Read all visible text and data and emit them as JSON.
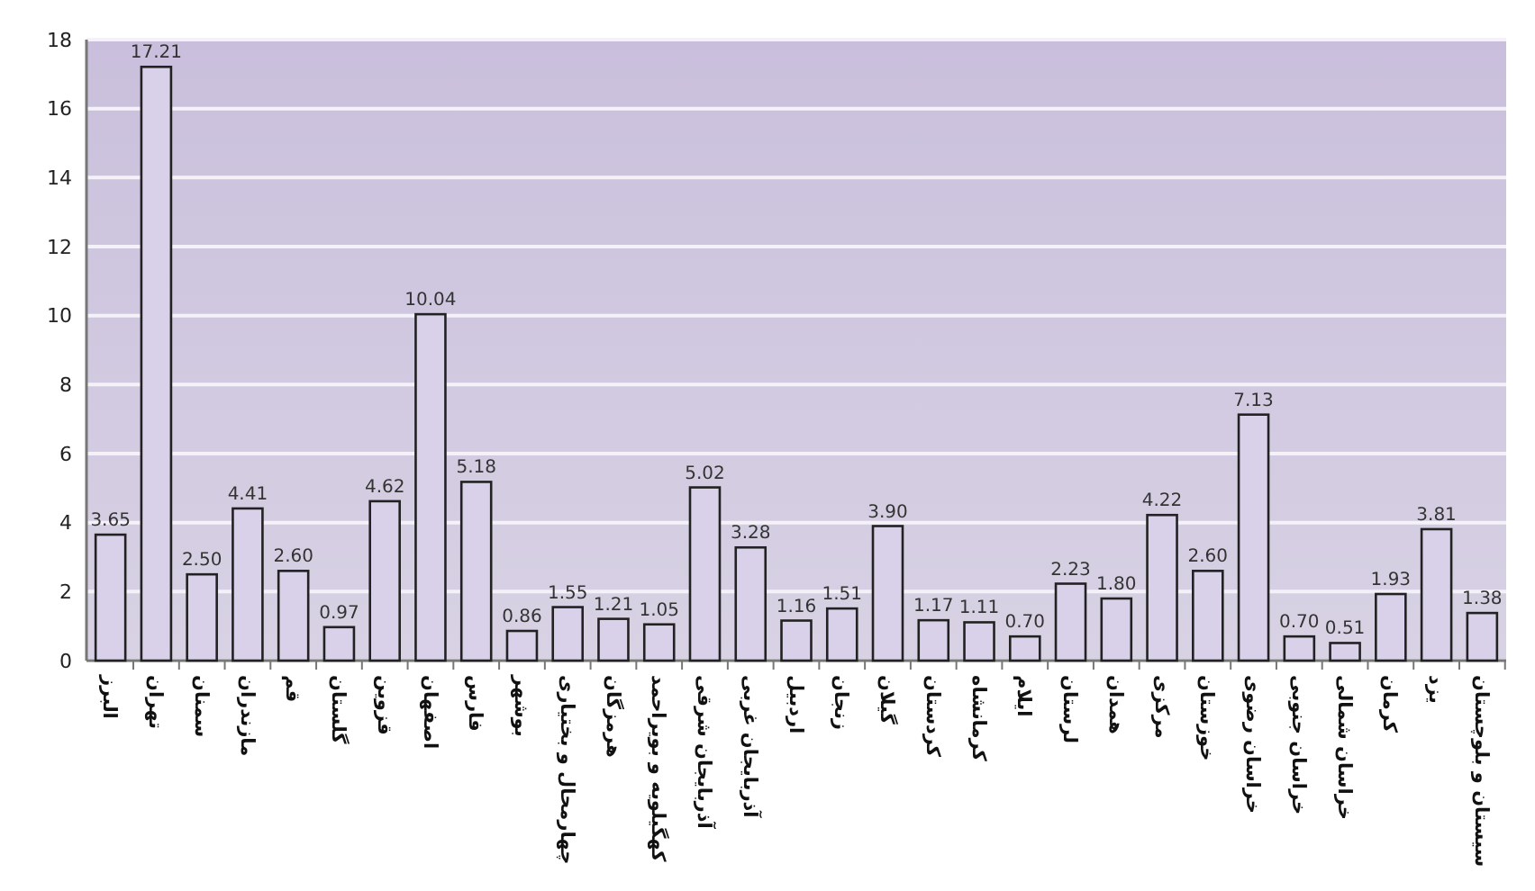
{
  "chart_data": {
    "type": "bar",
    "categories": [
      "البرز",
      "تهران",
      "سمنان",
      "مازندران",
      "قم",
      "گلستان",
      "قزوین",
      "اصفهان",
      "فارس",
      "بوشهر",
      "چهارمحال و بختیاری",
      "هرمزگان",
      "کهگیلویه و بویراحمد",
      "آذربایجان شرقی",
      "آذربایجان غربی",
      "اردبیل",
      "زنجان",
      "گیلان",
      "کردستان",
      "کرمانشاه",
      "ایلام",
      "لرستان",
      "همدان",
      "مرکزی",
      "خوزستان",
      "خراسان رضوی",
      "خراسان جنوبی",
      "خراسان شمالی",
      "کرمان",
      "یزد",
      "سیستان و بلوچستان"
    ],
    "values": [
      3.65,
      17.21,
      2.5,
      4.41,
      2.6,
      0.97,
      4.62,
      10.04,
      5.18,
      0.86,
      1.55,
      1.21,
      1.05,
      5.02,
      3.28,
      1.16,
      1.51,
      3.9,
      1.17,
      1.11,
      0.7,
      2.23,
      1.8,
      4.22,
      2.6,
      7.13,
      0.7,
      0.51,
      1.93,
      3.81,
      1.38
    ],
    "color": "#d9d1e9",
    "ylim": [
      0,
      18
    ],
    "yticks": [
      0,
      2,
      4,
      6,
      8,
      10,
      12,
      14,
      16,
      18
    ],
    "value_labels": [
      "3.65",
      "17.21",
      "2.50",
      "4.41",
      "2.60",
      "0.97",
      "4.62",
      "10.04",
      "5.18",
      "0.86",
      "1.55",
      "1.21",
      "1.05",
      "5.02",
      "3.28",
      "1.16",
      "1.51",
      "3.90",
      "1.17",
      "1.11",
      "0.70",
      "2.23",
      "1.80",
      "4.22",
      "2.60",
      "7.13",
      "0.70",
      "0.51",
      "1.93",
      "3.81",
      "1.38"
    ],
    "grid": "y"
  }
}
